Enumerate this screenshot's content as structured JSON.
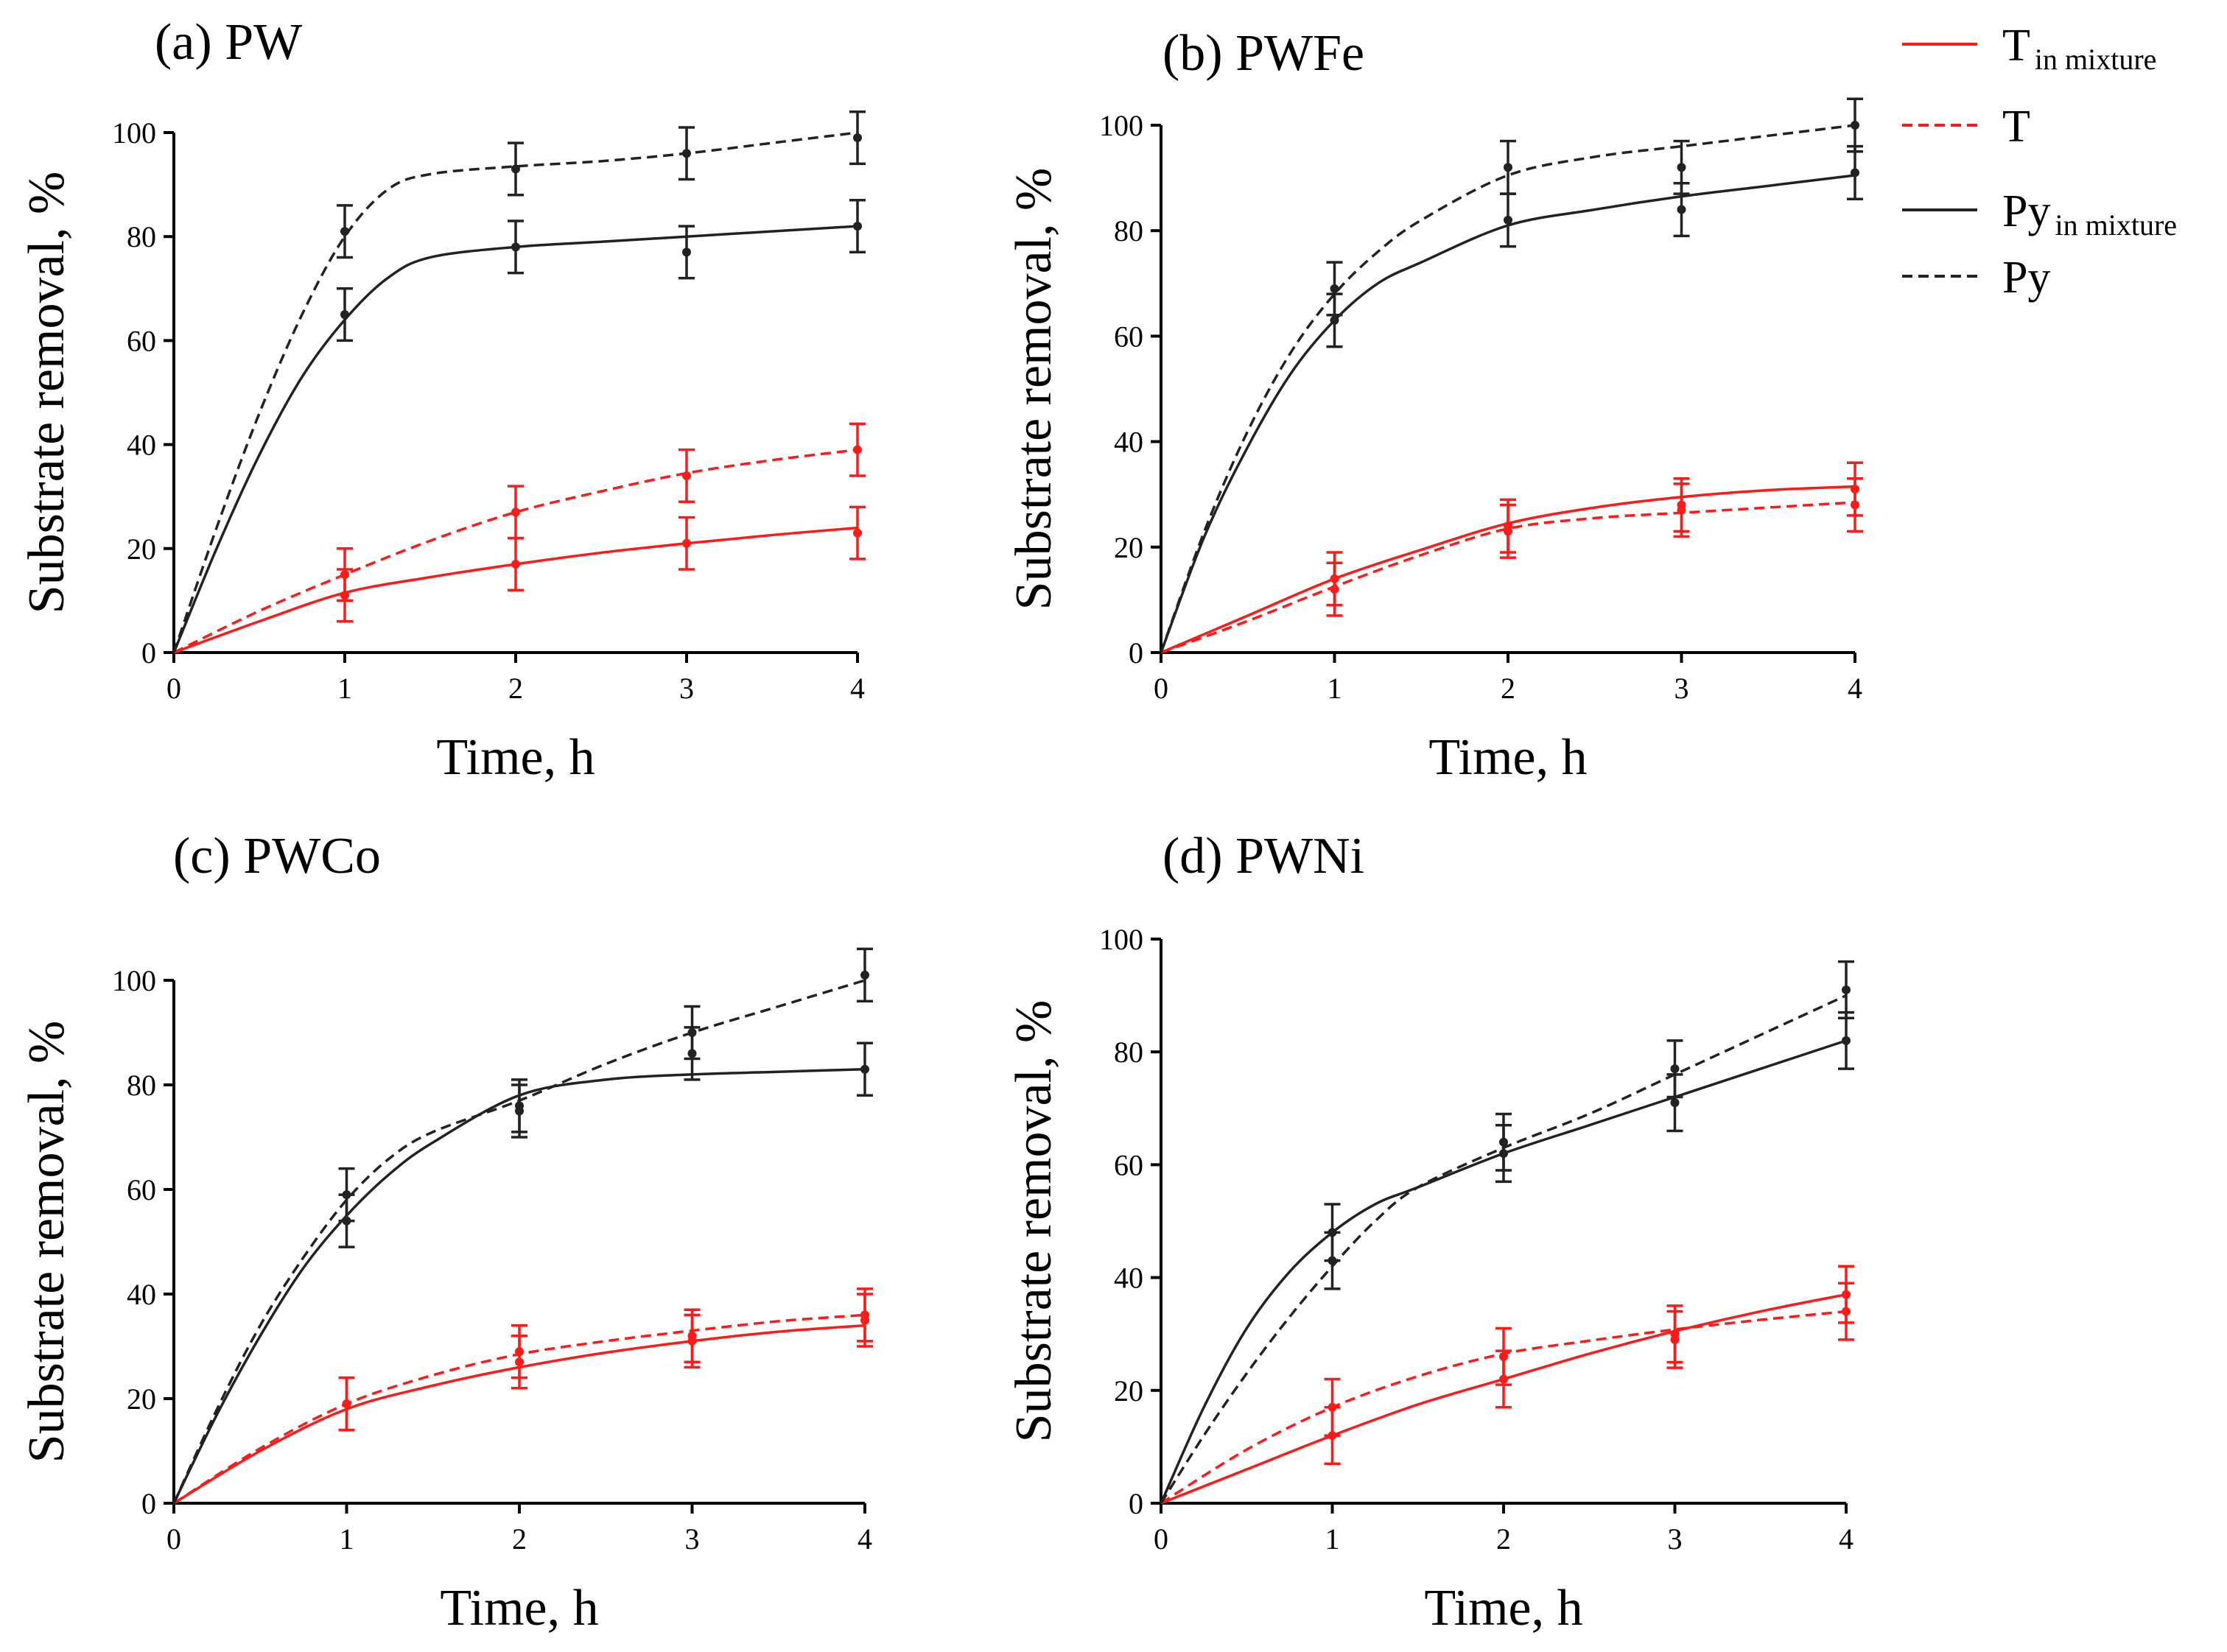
{
  "colors": {
    "T": "#ff1a1a",
    "Py": "#222222"
  },
  "legend": {
    "items": [
      {
        "series": "T_mix",
        "label_main": "T",
        "label_sub": "in mixture",
        "style": "solid",
        "color": "#ff1a1a"
      },
      {
        "series": "T",
        "label_main": "T",
        "label_sub": "",
        "style": "dashed",
        "color": "#ff1a1a"
      },
      {
        "series": "Py_mix",
        "label_main": "Py",
        "label_sub": "in mixture",
        "style": "solid",
        "color": "#222222"
      },
      {
        "series": "Py",
        "label_main": "Py",
        "label_sub": "",
        "style": "dashed",
        "color": "#222222"
      }
    ]
  },
  "chart_data": [
    {
      "type": "line",
      "title": "(a) PW",
      "xlabel": "Time, h",
      "ylabel": "Substrate removal, %",
      "xlim": [
        0,
        4
      ],
      "ylim": [
        0,
        100
      ],
      "xticks": [
        0,
        1,
        2,
        3,
        4
      ],
      "yticks": [
        0,
        20,
        40,
        60,
        80,
        100
      ],
      "series": [
        {
          "name": "T in mixture",
          "key": "T_mix",
          "style": "solid",
          "color": "#ff1a1a",
          "x": [
            0,
            1,
            2,
            3,
            4
          ],
          "values": [
            0,
            11,
            17,
            21,
            23
          ],
          "errors": [
            0,
            5,
            5,
            5,
            5
          ],
          "curve_x": [
            0,
            0.5,
            1,
            1.5,
            2,
            2.5,
            3,
            3.5,
            4
          ],
          "curve_y": [
            0,
            6,
            11.5,
            14.5,
            17,
            19.2,
            21,
            22.6,
            24
          ]
        },
        {
          "name": "T",
          "key": "T",
          "style": "dashed",
          "color": "#ff1a1a",
          "x": [
            0,
            1,
            2,
            3,
            4
          ],
          "values": [
            0,
            15,
            27,
            34,
            39
          ],
          "errors": [
            0,
            5,
            5,
            5,
            5
          ],
          "curve_x": [
            0,
            0.5,
            1,
            1.5,
            2,
            2.5,
            3,
            3.5,
            4
          ],
          "curve_y": [
            0,
            8,
            15,
            21.5,
            27,
            31,
            34.5,
            37,
            39
          ]
        },
        {
          "name": "Py in mixture",
          "key": "Py_mix",
          "style": "solid",
          "color": "#222222",
          "x": [
            0,
            1,
            2,
            3,
            4
          ],
          "values": [
            0,
            65,
            78,
            77,
            82
          ],
          "errors": [
            0,
            5,
            5,
            5,
            5
          ],
          "curve_x": [
            0,
            0.25,
            0.5,
            0.75,
            1,
            1.25,
            1.5,
            2,
            2.5,
            3,
            3.5,
            4
          ],
          "curve_y": [
            0,
            20,
            38,
            53,
            64,
            72,
            76,
            78,
            79,
            80,
            81,
            82
          ]
        },
        {
          "name": "Py",
          "key": "Py",
          "style": "dashed",
          "color": "#222222",
          "x": [
            0,
            1,
            2,
            3,
            4
          ],
          "values": [
            0,
            81,
            93,
            96,
            99
          ],
          "errors": [
            0,
            5,
            5,
            5,
            5
          ],
          "curve_x": [
            0,
            0.25,
            0.5,
            0.75,
            1,
            1.25,
            1.5,
            2,
            2.5,
            3,
            3.5,
            4
          ],
          "curve_y": [
            0,
            24,
            46,
            65,
            80,
            89,
            92,
            93.5,
            94.5,
            96,
            98,
            100
          ]
        }
      ]
    },
    {
      "type": "line",
      "title": "(b) PWFe",
      "xlabel": "Time, h",
      "ylabel": "Substrate removal, %",
      "xlim": [
        0,
        4
      ],
      "ylim": [
        0,
        100
      ],
      "xticks": [
        0,
        1,
        2,
        3,
        4
      ],
      "yticks": [
        0,
        20,
        40,
        60,
        80,
        100
      ],
      "series": [
        {
          "name": "T in mixture",
          "key": "T_mix",
          "style": "solid",
          "color": "#ff1a1a",
          "x": [
            0,
            1,
            2,
            3,
            4
          ],
          "values": [
            0,
            14,
            24,
            27,
            31
          ],
          "errors": [
            0,
            5,
            5,
            5,
            5
          ],
          "curve_x": [
            0,
            0.5,
            1,
            1.5,
            2,
            2.5,
            3,
            3.5,
            4
          ],
          "curve_y": [
            0,
            7,
            14,
            19.5,
            24.5,
            27.5,
            29.5,
            30.8,
            31.5
          ]
        },
        {
          "name": "T",
          "key": "T",
          "style": "dashed",
          "color": "#ff1a1a",
          "x": [
            0,
            1,
            2,
            3,
            4
          ],
          "values": [
            0,
            12,
            23,
            28,
            28
          ],
          "errors": [
            0,
            5,
            5,
            5,
            5
          ],
          "curve_x": [
            0,
            0.5,
            1,
            1.5,
            2,
            2.5,
            3,
            3.5,
            4
          ],
          "curve_y": [
            0,
            6,
            12.5,
            18.5,
            23.5,
            25.5,
            26.5,
            27.5,
            28.5
          ]
        },
        {
          "name": "Py in mixture",
          "key": "Py_mix",
          "style": "solid",
          "color": "#222222",
          "x": [
            0,
            1,
            2,
            3,
            4
          ],
          "values": [
            0,
            63,
            82,
            84,
            91
          ],
          "errors": [
            0,
            5,
            5,
            5,
            5
          ],
          "curve_x": [
            0,
            0.25,
            0.5,
            0.75,
            1,
            1.25,
            1.5,
            2,
            2.5,
            3,
            3.5,
            4
          ],
          "curve_y": [
            0,
            22,
            39,
            53,
            63,
            70,
            74,
            81,
            84,
            86.5,
            88.5,
            90.5
          ]
        },
        {
          "name": "Py",
          "key": "Py",
          "style": "dashed",
          "color": "#222222",
          "x": [
            0,
            1,
            2,
            3,
            4
          ],
          "values": [
            0,
            69,
            92,
            92,
            100
          ],
          "errors": [
            0,
            5,
            5,
            5,
            5
          ],
          "curve_x": [
            0,
            0.25,
            0.5,
            0.75,
            1,
            1.25,
            1.5,
            2,
            2.5,
            3,
            3.5,
            4
          ],
          "curve_y": [
            0,
            23,
            42,
            57,
            68,
            76,
            82,
            90.5,
            94,
            96,
            98,
            100
          ]
        }
      ]
    },
    {
      "type": "line",
      "title": "(c) PWCo",
      "xlabel": "Time, h",
      "ylabel": "Substrate removal, %",
      "xlim": [
        0,
        4
      ],
      "ylim": [
        0,
        100
      ],
      "xticks": [
        0,
        1,
        2,
        3,
        4
      ],
      "yticks": [
        0,
        20,
        40,
        60,
        80,
        100
      ],
      "series": [
        {
          "name": "T in mixture",
          "key": "T_mix",
          "style": "solid",
          "color": "#ff1a1a",
          "x": [
            0,
            1,
            2,
            3,
            4
          ],
          "values": [
            0,
            19,
            27,
            32,
            35
          ],
          "errors": [
            0,
            5,
            5,
            5,
            5
          ],
          "curve_x": [
            0,
            0.5,
            1,
            1.5,
            2,
            2.5,
            3,
            3.5,
            4
          ],
          "curve_y": [
            0,
            10,
            18,
            22.5,
            26,
            28.8,
            31,
            32.8,
            34
          ]
        },
        {
          "name": "T",
          "key": "T",
          "style": "dashed",
          "color": "#ff1a1a",
          "x": [
            0,
            1,
            2,
            3,
            4
          ],
          "values": [
            0,
            19,
            29,
            31,
            36
          ],
          "errors": [
            0,
            5,
            5,
            5,
            5
          ],
          "curve_x": [
            0,
            0.5,
            1,
            1.5,
            2,
            2.5,
            3,
            3.5,
            4
          ],
          "curve_y": [
            0,
            10.5,
            19,
            24.5,
            28.5,
            31,
            33,
            34.8,
            36
          ]
        },
        {
          "name": "Py in mixture",
          "key": "Py_mix",
          "style": "solid",
          "color": "#222222",
          "x": [
            0,
            1,
            2,
            3,
            4
          ],
          "values": [
            0,
            54,
            76,
            86,
            83
          ],
          "errors": [
            0,
            5,
            5,
            5,
            5
          ],
          "curve_x": [
            0,
            0.25,
            0.5,
            0.75,
            1,
            1.25,
            1.5,
            2,
            2.5,
            3,
            3.5,
            4
          ],
          "curve_y": [
            0,
            17,
            32,
            45,
            55,
            63,
            69,
            78,
            81,
            82,
            82.5,
            83
          ]
        },
        {
          "name": "Py",
          "key": "Py",
          "style": "dashed",
          "color": "#222222",
          "x": [
            0,
            1,
            2,
            3,
            4
          ],
          "values": [
            0,
            59,
            75,
            90,
            101
          ],
          "errors": [
            0,
            5,
            5,
            5,
            5
          ],
          "curve_x": [
            0,
            0.25,
            0.5,
            0.75,
            1,
            1.25,
            1.5,
            2,
            2.5,
            3,
            3.5,
            4
          ],
          "curve_y": [
            0,
            18,
            34,
            47,
            58,
            66,
            71,
            77,
            84,
            90,
            95,
            100
          ]
        }
      ]
    },
    {
      "type": "line",
      "title": "(d) PWNi",
      "xlabel": "Time, h",
      "ylabel": "Substrate removal, %",
      "xlim": [
        0,
        4
      ],
      "ylim": [
        0,
        100
      ],
      "xticks": [
        0,
        1,
        2,
        3,
        4
      ],
      "yticks": [
        0,
        20,
        40,
        60,
        80,
        100
      ],
      "series": [
        {
          "name": "T in mixture",
          "key": "T_mix",
          "style": "solid",
          "color": "#ff1a1a",
          "x": [
            0,
            1,
            2,
            3,
            4
          ],
          "values": [
            0,
            12,
            22,
            30,
            37
          ],
          "errors": [
            0,
            5,
            5,
            5,
            5
          ],
          "curve_x": [
            0,
            0.5,
            1,
            1.5,
            2,
            2.5,
            3,
            3.5,
            4
          ],
          "curve_y": [
            0,
            6,
            12,
            17.5,
            22,
            26.5,
            30.5,
            34,
            37
          ]
        },
        {
          "name": "T",
          "key": "T",
          "style": "dashed",
          "color": "#ff1a1a",
          "x": [
            0,
            1,
            2,
            3,
            4
          ],
          "values": [
            0,
            17,
            26,
            29,
            34
          ],
          "errors": [
            0,
            5,
            5,
            5,
            5
          ],
          "curve_x": [
            0,
            0.5,
            1,
            1.5,
            2,
            2.5,
            3,
            3.5,
            4
          ],
          "curve_y": [
            0,
            9.5,
            17,
            22.5,
            26.5,
            28.8,
            30.8,
            32.5,
            34
          ]
        },
        {
          "name": "Py in mixture",
          "key": "Py_mix",
          "style": "solid",
          "color": "#222222",
          "x": [
            0,
            1,
            2,
            3,
            4
          ],
          "values": [
            0,
            48,
            62,
            71,
            82
          ],
          "errors": [
            0,
            5,
            5,
            5,
            5
          ],
          "curve_x": [
            0,
            0.25,
            0.5,
            0.75,
            1,
            1.25,
            1.5,
            2,
            2.5,
            3,
            3.5,
            4
          ],
          "curve_y": [
            0,
            17,
            31,
            41,
            48,
            53,
            56,
            62,
            67,
            72,
            77,
            82
          ]
        },
        {
          "name": "Py",
          "key": "Py",
          "style": "dashed",
          "color": "#222222",
          "x": [
            0,
            1,
            2,
            3,
            4
          ],
          "values": [
            0,
            43,
            64,
            77,
            91
          ],
          "errors": [
            0,
            5,
            5,
            5,
            5
          ],
          "curve_x": [
            0,
            0.25,
            0.5,
            0.75,
            1,
            1.25,
            1.5,
            2,
            2.5,
            3,
            3.5,
            4
          ],
          "curve_y": [
            0,
            12,
            23,
            33,
            42,
            50,
            56,
            63,
            69,
            76,
            83,
            90
          ]
        }
      ]
    }
  ]
}
